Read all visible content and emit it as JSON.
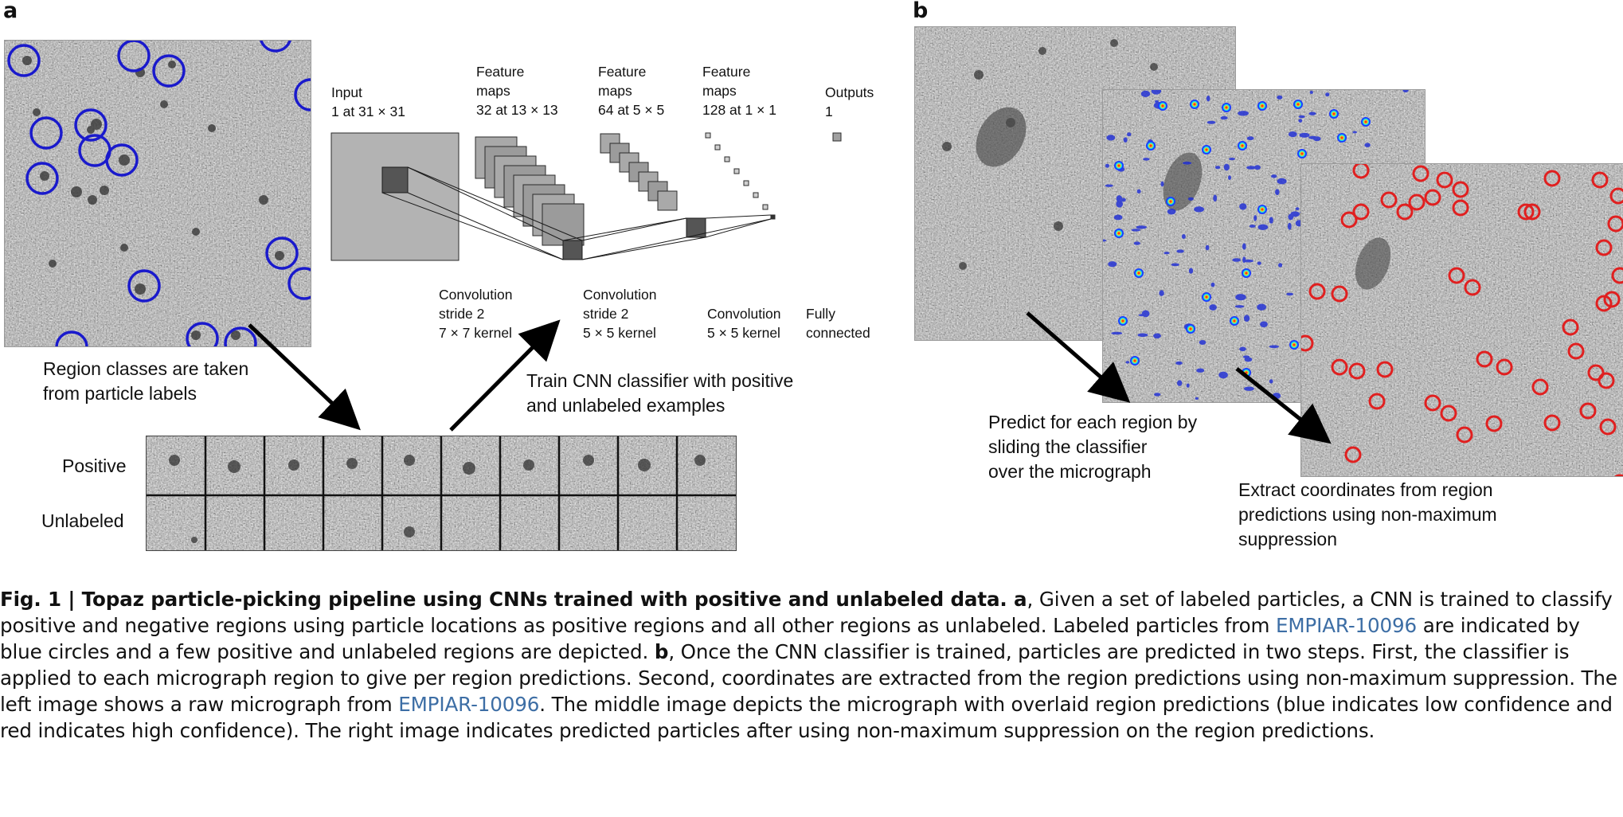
{
  "panel_a": {
    "letter": "a",
    "cnn": {
      "input": "Input\n1 at 31 × 31",
      "fm1": "Feature\nmaps\n32 at 13 × 13",
      "fm2": "Feature\nmaps\n64 at 5 × 5",
      "fm3": "Feature\nmaps\n128 at 1 × 1",
      "outputs": "Outputs\n1",
      "conv1": "Convolution\nstride 2\n7 × 7 kernel",
      "conv2": "Convolution\nstride 2\n5 × 5 kernel",
      "conv3": "Convolution\n5 × 5 kernel",
      "fc": "Fully\nconnected"
    },
    "region_text": "Region classes are taken\nfrom particle labels",
    "train_text": "Train CNN classifier with positive\nand unlabeled examples",
    "row_positive": "Positive",
    "row_unlabeled": "Unlabeled",
    "circle_color": "#1a1acc"
  },
  "panel_b": {
    "letter": "b",
    "predict_text": "Predict for each region by\nsliding the classifier\nover the micrograph",
    "extract_text": "Extract coordinates from region\npredictions using non-maximum\nsuppression",
    "circle_color": "#e02020"
  },
  "caption": {
    "fig_label": "Fig. 1 | ",
    "title": "Topaz particle-picking pipeline using CNNs trained with positive and unlabeled data. ",
    "a_label": "a",
    "text_a": ", Given a set of labeled particles, a CNN is trained to classify positive and negative regions using particle locations as positive regions and all other regions as unlabeled. Labeled particles from ",
    "link1": "EMPIAR-10096",
    "text_a2": " are indicated by blue circles and a few positive and unlabeled regions are depicted. ",
    "b_label": "b",
    "text_b": ", Once the CNN classifier is trained, particles are predicted in two steps. First, the classifier is applied to each micrograph region to give per region predictions. Second, coordinates are extracted from the region predictions using non-maximum suppression. The left image shows a raw micrograph from ",
    "link2": "EMPIAR-10096",
    "text_b2": ". The middle image depicts the micrograph with overlaid region predictions (blue indicates low confidence and red indicates high confidence). The right image indicates predicted particles after using non-maximum suppression on the region predictions."
  }
}
